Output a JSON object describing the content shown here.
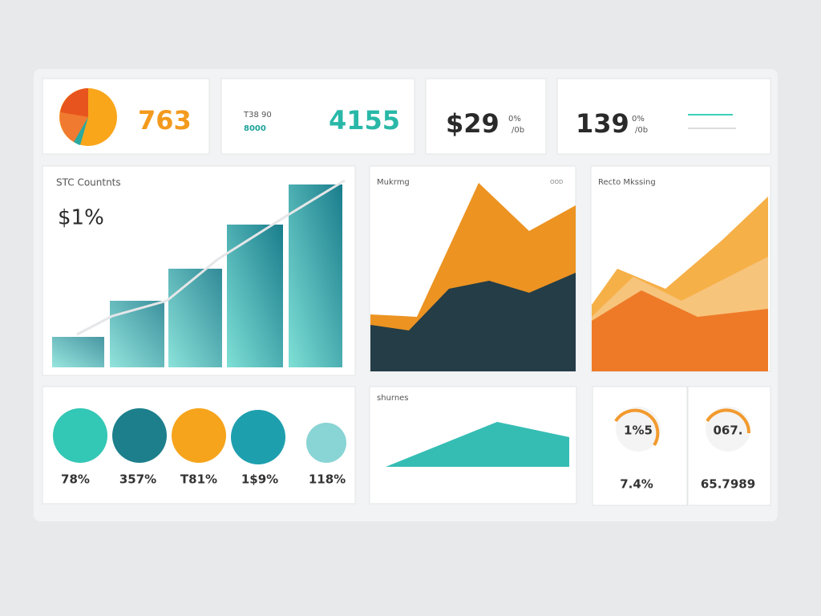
{
  "kpis": [
    {
      "value": "763"
    },
    {
      "label_top": "T38 90",
      "label_bottom": "8000",
      "value": "4155"
    },
    {
      "value": "$29",
      "suffix_top": "0%",
      "suffix_bottom": "/0b"
    },
    {
      "value": "139",
      "suffix_top": "0%",
      "suffix_bottom": "/0b"
    }
  ],
  "panels": [
    {
      "title": "STC Countnts",
      "value": "$1%"
    },
    {
      "title": "Mukrmg",
      "tag": "OOD"
    },
    {
      "title": "Recto Mkssing"
    }
  ],
  "circles": {
    "labels": [
      "78%",
      "357%",
      "T81%",
      "1$9%",
      "118%"
    ]
  },
  "area_card": {
    "title": "shurnes"
  },
  "gauges": [
    {
      "center": "1%5",
      "value": "7.4%"
    },
    {
      "center": "067.",
      "value": "65.7989"
    }
  ]
}
